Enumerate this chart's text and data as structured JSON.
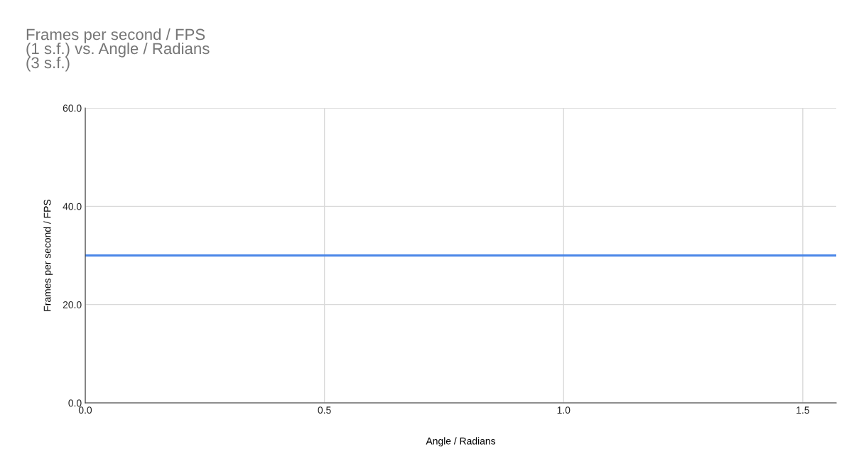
{
  "chart_data": {
    "type": "line",
    "title": "Frames per second / FPS\n(1 s.f.) vs. Angle / Radians\n(3 s.f.)",
    "xlabel": "Angle / Radians",
    "ylabel": "Frames per second / FPS",
    "x": [
      0,
      1.57
    ],
    "series": [
      {
        "color": "#4a86e8",
        "values": [
          30,
          30
        ]
      }
    ],
    "xlim": [
      0,
      1.57
    ],
    "xticks": [
      {
        "value": 0,
        "label": "0.0"
      },
      0.5,
      {
        "value": 1,
        "label": "1.0"
      },
      1.5
    ],
    "ylim": [
      0,
      60
    ],
    "yticks": [
      {
        "value": 0,
        "label": "0.0"
      },
      {
        "value": 20,
        "label": "20.0"
      },
      {
        "value": 40,
        "label": "40.0"
      },
      {
        "value": 60,
        "label": "60.0"
      }
    ],
    "grid": true,
    "legend": false,
    "marker": "none",
    "line_style": "solid"
  }
}
